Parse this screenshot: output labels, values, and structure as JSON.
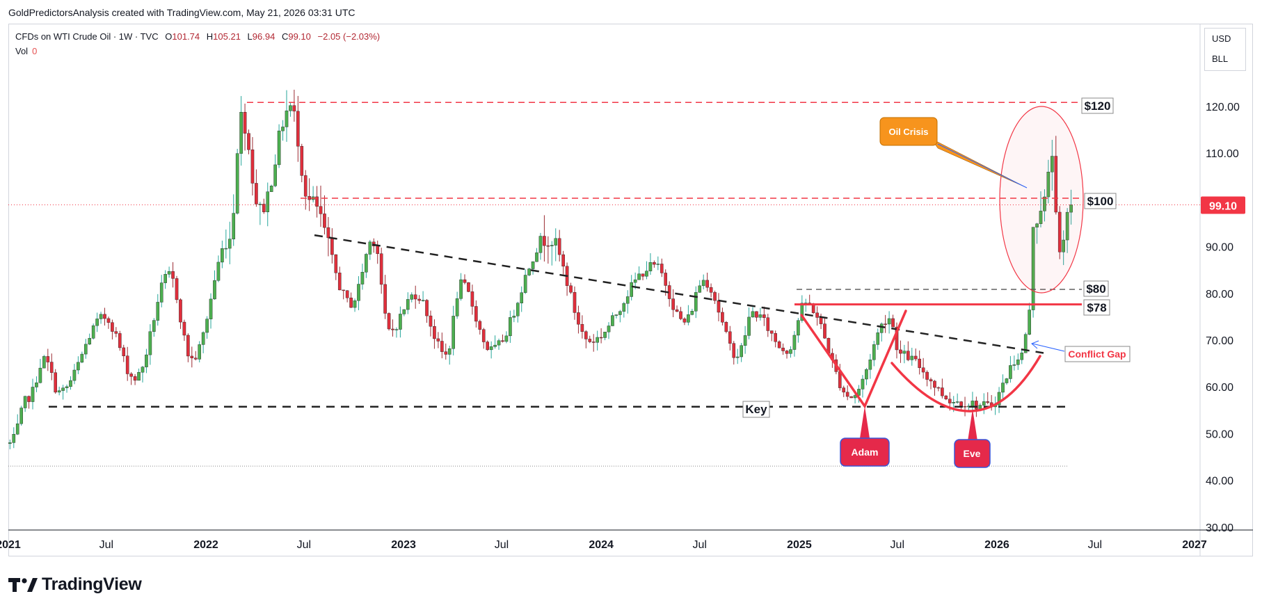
{
  "header": {
    "text": "GoldPredictorsAnalysis created with TradingView.com, May 21, 2026 03:31 UTC"
  },
  "legend": {
    "symbol": "CFDs on WTI Crude Oil · 1W · TVC",
    "open_label": "O",
    "open": "101.74",
    "high_label": "H",
    "high": "105.21",
    "low_label": "L",
    "low": "96.94",
    "close_label": "C",
    "close": "99.10",
    "change": "−2.05 (−2.03%)",
    "vol_label": "Vol",
    "vol": "0"
  },
  "units": {
    "currency": "USD",
    "unit": "BLL"
  },
  "price_tag": "99.10",
  "brand": {
    "name": "TradingView"
  },
  "colors": {
    "up": "#26a69a",
    "up_fill": "#4caf50",
    "down": "#e02f3c",
    "annotation_red": "#f23645",
    "orange": "#f7941d",
    "text": "#131722"
  },
  "chart_data": {
    "type": "candlestick",
    "title": "CFDs on WTI Crude Oil · 1W · TVC",
    "timeframe": "1W",
    "ylim": [
      30,
      130
    ],
    "y_ticks": [
      "120.00",
      "110.00",
      "100.00",
      "90.00",
      "80.00",
      "70.00",
      "60.00",
      "50.00",
      "40.00",
      "30.00"
    ],
    "x_range": [
      "2021-01-01",
      "2027-01-01"
    ],
    "x_ticks": [
      {
        "label": "2021",
        "date": "2021-01-01",
        "year": true
      },
      {
        "label": "Jul",
        "date": "2021-07-01",
        "year": false
      },
      {
        "label": "2022",
        "date": "2022-01-01",
        "year": true
      },
      {
        "label": "Jul",
        "date": "2022-07-01",
        "year": false
      },
      {
        "label": "2023",
        "date": "2023-01-01",
        "year": true
      },
      {
        "label": "Jul",
        "date": "2023-07-01",
        "year": false
      },
      {
        "label": "2024",
        "date": "2024-01-01",
        "year": true
      },
      {
        "label": "Jul",
        "date": "2024-07-01",
        "year": false
      },
      {
        "label": "2025",
        "date": "2025-01-01",
        "year": true
      },
      {
        "label": "Jul",
        "date": "2025-07-01",
        "year": false
      },
      {
        "label": "2026",
        "date": "2026-01-01",
        "year": true
      },
      {
        "label": "Jul",
        "date": "2026-07-01",
        "year": false
      },
      {
        "label": "2027",
        "date": "2027-01-01",
        "year": true
      }
    ],
    "last_price": 99.1,
    "anchors": [
      {
        "date": "2021-01-04",
        "price": 48
      },
      {
        "date": "2021-02-08",
        "price": 58
      },
      {
        "date": "2021-03-08",
        "price": 66
      },
      {
        "date": "2021-04-05",
        "price": 59
      },
      {
        "date": "2021-06-28",
        "price": 75
      },
      {
        "date": "2021-08-23",
        "price": 62
      },
      {
        "date": "2021-10-25",
        "price": 84
      },
      {
        "date": "2021-12-06",
        "price": 66
      },
      {
        "date": "2022-02-14",
        "price": 92
      },
      {
        "date": "2022-03-07",
        "price": 118
      },
      {
        "date": "2022-04-11",
        "price": 98
      },
      {
        "date": "2022-06-06",
        "price": 120
      },
      {
        "date": "2022-07-11",
        "price": 100
      },
      {
        "date": "2022-09-26",
        "price": 78
      },
      {
        "date": "2022-11-07",
        "price": 92
      },
      {
        "date": "2022-12-05",
        "price": 72
      },
      {
        "date": "2023-01-23",
        "price": 80
      },
      {
        "date": "2023-03-20",
        "price": 67
      },
      {
        "date": "2023-04-17",
        "price": 82
      },
      {
        "date": "2023-06-12",
        "price": 68
      },
      {
        "date": "2023-09-25",
        "price": 92
      },
      {
        "date": "2023-12-11",
        "price": 70
      },
      {
        "date": "2024-04-08",
        "price": 86
      },
      {
        "date": "2024-06-03",
        "price": 74
      },
      {
        "date": "2024-07-08",
        "price": 83
      },
      {
        "date": "2024-09-09",
        "price": 67
      },
      {
        "date": "2024-10-07",
        "price": 76
      },
      {
        "date": "2024-12-09",
        "price": 68
      },
      {
        "date": "2025-01-13",
        "price": 78
      },
      {
        "date": "2025-04-07",
        "price": 58
      },
      {
        "date": "2025-06-16",
        "price": 75
      },
      {
        "date": "2025-07-07",
        "price": 67
      },
      {
        "date": "2025-10-20",
        "price": 57
      },
      {
        "date": "2025-12-15",
        "price": 56
      },
      {
        "date": "2026-02-16",
        "price": 67
      },
      {
        "date": "2026-03-02",
        "price": 76
      },
      {
        "date": "2026-03-09",
        "price": 95
      },
      {
        "date": "2026-03-30",
        "price": 100
      },
      {
        "date": "2026-04-13",
        "price": 110
      },
      {
        "date": "2026-04-27",
        "price": 88
      },
      {
        "date": "2026-05-18",
        "price": 99.1
      }
    ],
    "annotations": {
      "horizontal_levels": [
        {
          "label": "$120",
          "price": 121,
          "style": "dashed-red"
        },
        {
          "label": "$100",
          "price": 100.5,
          "style": "dashed-red"
        },
        {
          "label": "$80",
          "price": 81,
          "style": "dashed-black"
        },
        {
          "label": "$78",
          "price": 77.8,
          "style": "solid-red"
        }
      ],
      "key_level": {
        "label": "Key",
        "price": 55.9
      },
      "callouts": [
        {
          "label": "Oil Crisis"
        },
        {
          "label": "Conflict Gap"
        },
        {
          "label": "Adam"
        },
        {
          "label": "Eve"
        }
      ]
    }
  }
}
